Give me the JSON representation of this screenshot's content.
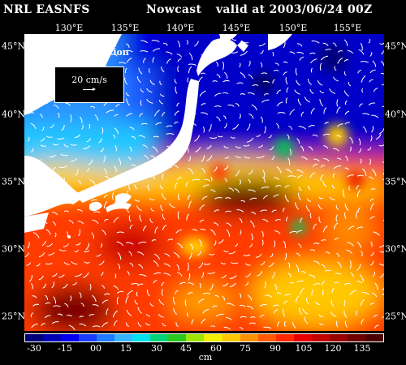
{
  "header": {
    "agency": "NRL EASNFS",
    "product": "Nowcast",
    "valid": "valid at 2003/06/24 00Z"
  },
  "axes": {
    "lon_labels": [
      "130°E",
      "135°E",
      "140°E",
      "145°E",
      "150°E",
      "155°E"
    ],
    "lat_labels": [
      "45°N",
      "40°N",
      "35°N",
      "30°N",
      "25°N"
    ]
  },
  "map": {
    "field": "Surface Elevation",
    "vector_legend": "20 cm/s",
    "land_color": "#ffffff",
    "outside_color": "#000000"
  },
  "colorbar": {
    "tick_labels": [
      "-30",
      "-15",
      "00",
      "15",
      "30",
      "45",
      "60",
      "75",
      "90",
      "105",
      "120",
      "135"
    ],
    "units": "cm",
    "colors": [
      "#00007a",
      "#0000b5",
      "#0000ee",
      "#1a3cff",
      "#1f7bff",
      "#35b5ff",
      "#00e0f0",
      "#00d27a",
      "#28c81e",
      "#9ce600",
      "#f0f000",
      "#ffc800",
      "#ff9200",
      "#ff5a00",
      "#ff2800",
      "#e80000",
      "#c40000",
      "#9a0000",
      "#700000",
      "#4a0000"
    ]
  }
}
